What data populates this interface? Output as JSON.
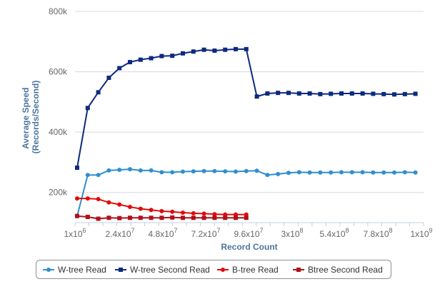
{
  "chart_data": {
    "type": "line",
    "xlabel": "Record Count",
    "ylabel_line1": "Average Speed",
    "ylabel_line2": "(Records/Second)",
    "y_ticks": [
      "200k",
      "400k",
      "600k",
      "800k"
    ],
    "y_tick_values": [
      200000,
      400000,
      600000,
      800000
    ],
    "ylim": [
      100000,
      800000
    ],
    "x_tick_labels": [
      {
        "base": "1x10",
        "exp": "6"
      },
      {
        "base": "2.4x10",
        "exp": "7"
      },
      {
        "base": "4.8x10",
        "exp": "7"
      },
      {
        "base": "7.2x10",
        "exp": "7"
      },
      {
        "base": "9.6x10",
        "exp": "7"
      },
      {
        "base": "3x10",
        "exp": "8"
      },
      {
        "base": "5.4x10",
        "exp": "8"
      },
      {
        "base": "7.8x10",
        "exp": "8"
      },
      {
        "base": "1x10",
        "exp": "9"
      }
    ],
    "legend_position": "bottom",
    "grid": true,
    "series": [
      {
        "name": "W-tree Read",
        "color": "#2f8fce",
        "marker": "circle",
        "values": [
          122000,
          258000,
          258000,
          273000,
          275000,
          277000,
          273000,
          273000,
          267000,
          267000,
          269000,
          270000,
          271000,
          271000,
          270000,
          269000,
          271000,
          272000,
          258000,
          261000,
          265000,
          267000,
          266000,
          266000,
          266000,
          267000,
          267000,
          267000,
          266000,
          266000,
          266000,
          267000,
          266000
        ]
      },
      {
        "name": "W-tree Second Read",
        "color": "#0d2a7e",
        "marker": "square",
        "values": [
          282000,
          480000,
          532000,
          580000,
          612000,
          632000,
          640000,
          645000,
          652000,
          653000,
          661000,
          667000,
          673000,
          670000,
          673000,
          675000,
          675000,
          518000,
          528000,
          530000,
          530000,
          528000,
          528000,
          526000,
          527000,
          528000,
          528000,
          528000,
          527000,
          526000,
          525000,
          526000,
          527000
        ]
      },
      {
        "name": "B-tree Read",
        "color": "#e00b0b",
        "marker": "circle",
        "values": [
          180000,
          180000,
          178000,
          167000,
          160000,
          152000,
          146000,
          142000,
          138000,
          136000,
          133000,
          131000,
          130000,
          128000,
          127000,
          127000,
          127000
        ]
      },
      {
        "name": "Btree Second Read",
        "color": "#b0111a",
        "marker": "square",
        "values": [
          122000,
          119000,
          113000,
          116000,
          115000,
          116000,
          116000,
          116000,
          116000,
          117000,
          116000,
          116000,
          116000,
          116000,
          116000,
          116000,
          116000
        ]
      }
    ]
  }
}
